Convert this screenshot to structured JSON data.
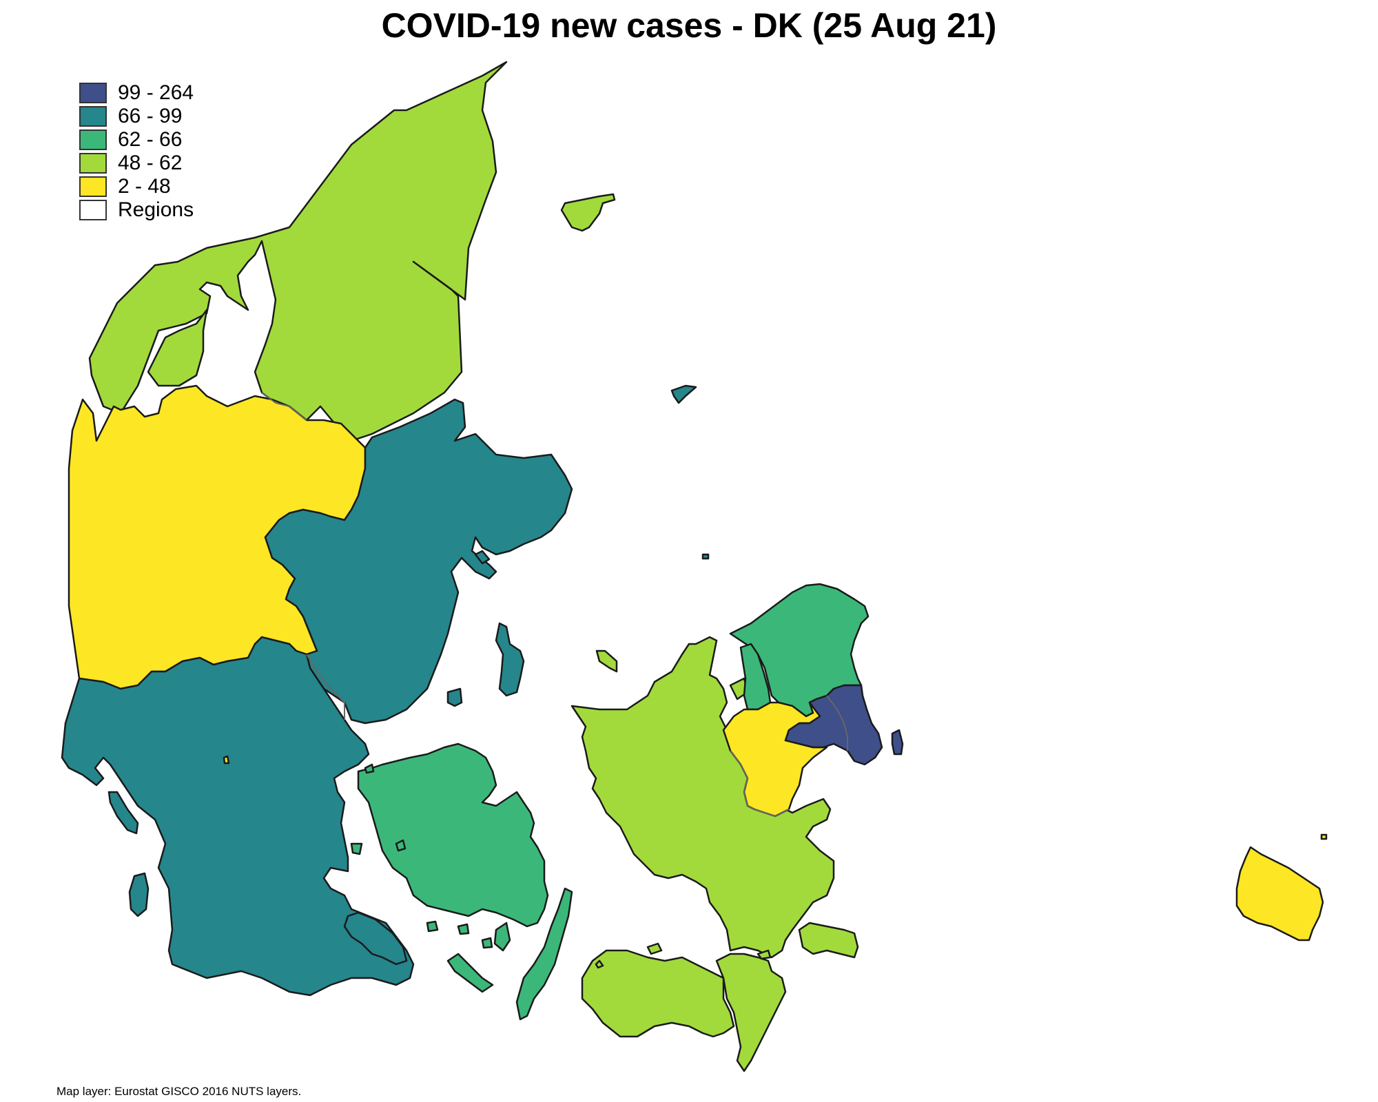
{
  "title": "COVID-19 new cases - DK (25 Aug 21)",
  "source_note": "Map layer: Eurostat GISCO 2016 NUTS layers.",
  "legend": [
    {
      "label": "99 - 264",
      "color": "#3e4f8a"
    },
    {
      "label": "66 - 99",
      "color": "#25868c"
    },
    {
      "label": "62 - 66",
      "color": "#3bb879"
    },
    {
      "label": "48 - 62",
      "color": "#a2da3c"
    },
    {
      "label": "2 - 48",
      "color": "#fde624"
    },
    {
      "label": "Regions",
      "color": "#ffffff"
    }
  ],
  "class_colors": {
    "c99_264": "#3e4f8a",
    "c66_99": "#25868c",
    "c62_66": "#3bb879",
    "c48_62": "#a2da3c",
    "c2_48": "#fde624"
  }
}
